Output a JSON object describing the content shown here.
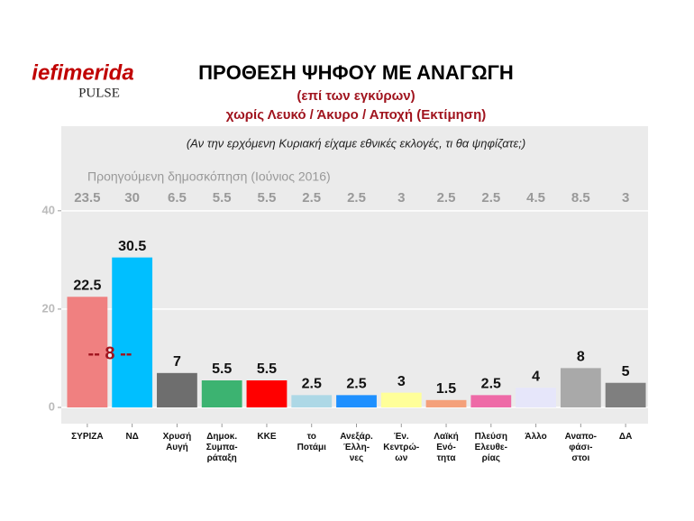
{
  "logo": {
    "brand": "iefimerida",
    "partner": "PULSE"
  },
  "chart_data": {
    "type": "bar",
    "title": "ΠΡΟΘΕΣΗ ΨΗΦΟΥ ΜΕ ΑΝΑΓΩΓΗ",
    "subtitle": "(επί των εγκύρων)",
    "subtitle2": "χωρίς Λευκό / Άκυρο / Αποχή  (Εκτίμηση)",
    "question": "(Αν την ερχόμενη Κυριακή είχαμε εθνικές εκλογές, τι θα ψηφίζατε;)",
    "previous_label": "Προηγούμενη δημοσκόπηση (Ιούνιος 2016)",
    "previous_values": [
      23.5,
      30,
      6.5,
      5.5,
      5.5,
      2.5,
      2.5,
      3,
      2.5,
      2.5,
      4.5,
      8.5,
      3
    ],
    "annotation": "-- 8 --",
    "categories": [
      [
        "ΣΥΡΙΖΑ"
      ],
      [
        "ΝΔ"
      ],
      [
        "Χρυσή",
        "Αυγή"
      ],
      [
        "Δημοκ.",
        "Συμπα-",
        "ράταξη"
      ],
      [
        "ΚΚΕ"
      ],
      [
        "το",
        "Ποτάμι"
      ],
      [
        "Ανεξάρ.",
        "Έλλη-",
        "νες"
      ],
      [
        "Έν.",
        "Κεντρώ-",
        "ων"
      ],
      [
        "Λαϊκή",
        "Ενό-",
        "τητα"
      ],
      [
        "Πλεύση",
        "Ελευθε-",
        "ρίας"
      ],
      [
        "Άλλο"
      ],
      [
        "Αναπο-",
        "φάσι-",
        "στοι"
      ],
      [
        "ΔΑ"
      ]
    ],
    "values": [
      22.5,
      30.5,
      7,
      5.5,
      5.5,
      2.5,
      2.5,
      3,
      1.5,
      2.5,
      4,
      8,
      5
    ],
    "colors": [
      "#f08080",
      "#00bfff",
      "#6e6e6e",
      "#3cb371",
      "#ff0000",
      "#add8e6",
      "#1e90ff",
      "#ffff99",
      "#f4a07a",
      "#ee6aa7",
      "#e6e6fa",
      "#a9a9a9",
      "#7f7f7f"
    ],
    "ylim": [
      -3.3,
      57.2
    ],
    "yticks": [
      0,
      20,
      40
    ],
    "grid": true
  }
}
